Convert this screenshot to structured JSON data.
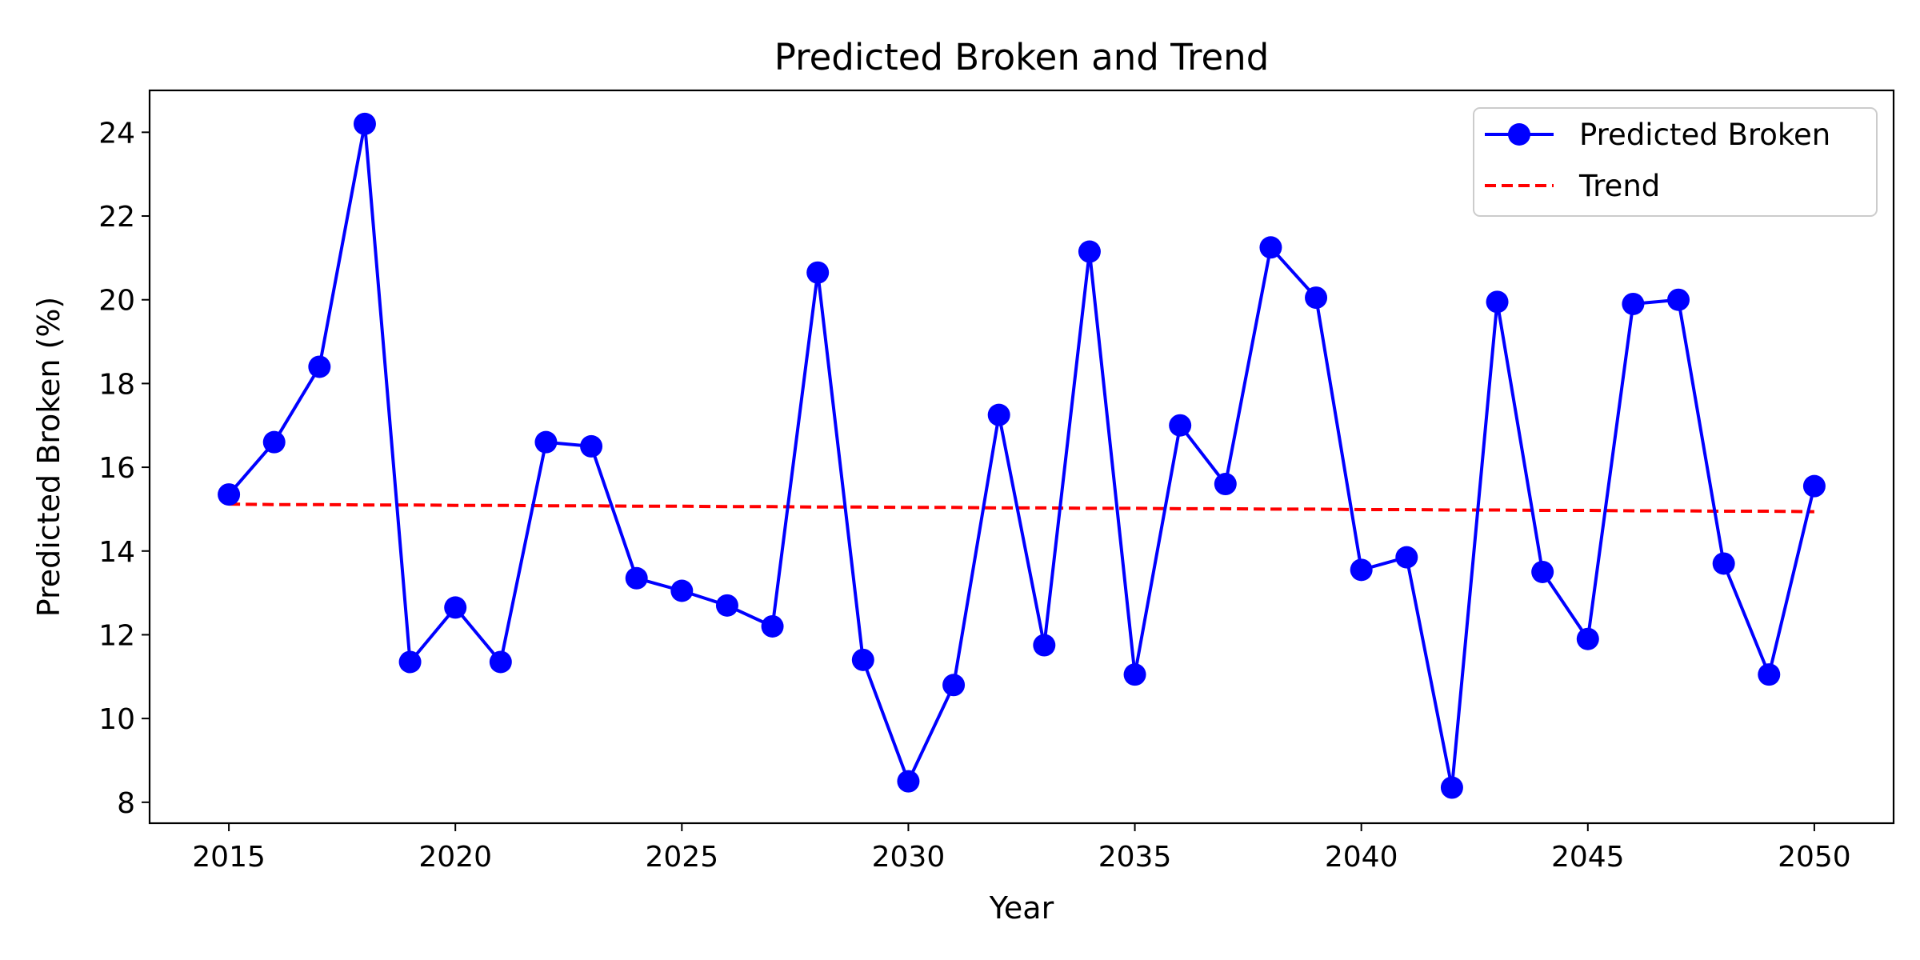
{
  "chart_data": {
    "type": "line",
    "title": "Predicted Broken and Trend",
    "xlabel": "Year",
    "ylabel": "Predicted Broken (%)",
    "xlim": [
      2013.25,
      2051.75
    ],
    "ylim": [
      7.5,
      25.0
    ],
    "x_ticks": [
      2015,
      2020,
      2025,
      2030,
      2035,
      2040,
      2045,
      2050
    ],
    "y_ticks": [
      8,
      10,
      12,
      14,
      16,
      18,
      20,
      22,
      24
    ],
    "grid": false,
    "legend": {
      "placement": "top-right"
    },
    "x": [
      2015,
      2016,
      2017,
      2018,
      2019,
      2020,
      2021,
      2022,
      2023,
      2024,
      2025,
      2026,
      2027,
      2028,
      2029,
      2030,
      2031,
      2032,
      2033,
      2034,
      2035,
      2036,
      2037,
      2038,
      2039,
      2040,
      2041,
      2042,
      2043,
      2044,
      2045,
      2046,
      2047,
      2048,
      2049,
      2050
    ],
    "series": [
      {
        "name": "Predicted Broken",
        "style": "solid-with-markers",
        "color": "#0000ff",
        "values": [
          15.35,
          16.6,
          18.4,
          24.2,
          11.35,
          12.65,
          11.35,
          16.6,
          16.5,
          13.35,
          13.05,
          12.7,
          12.2,
          20.65,
          11.4,
          8.5,
          10.8,
          17.25,
          11.75,
          21.15,
          11.05,
          17.0,
          15.6,
          21.25,
          20.05,
          13.55,
          13.85,
          8.35,
          19.95,
          13.5,
          11.9,
          19.9,
          20.0,
          13.7,
          11.05,
          15.55
        ]
      },
      {
        "name": "Trend",
        "style": "dashed",
        "color": "#ff0000",
        "values": [
          15.12,
          15.11,
          15.11,
          15.1,
          15.1,
          15.09,
          15.09,
          15.08,
          15.08,
          15.07,
          15.07,
          15.06,
          15.06,
          15.05,
          15.05,
          15.04,
          15.04,
          15.03,
          15.03,
          15.02,
          15.02,
          15.01,
          15.01,
          15.0,
          15.0,
          14.99,
          14.99,
          14.98,
          14.98,
          14.97,
          14.97,
          14.96,
          14.96,
          14.95,
          14.95,
          14.94
        ]
      }
    ]
  }
}
